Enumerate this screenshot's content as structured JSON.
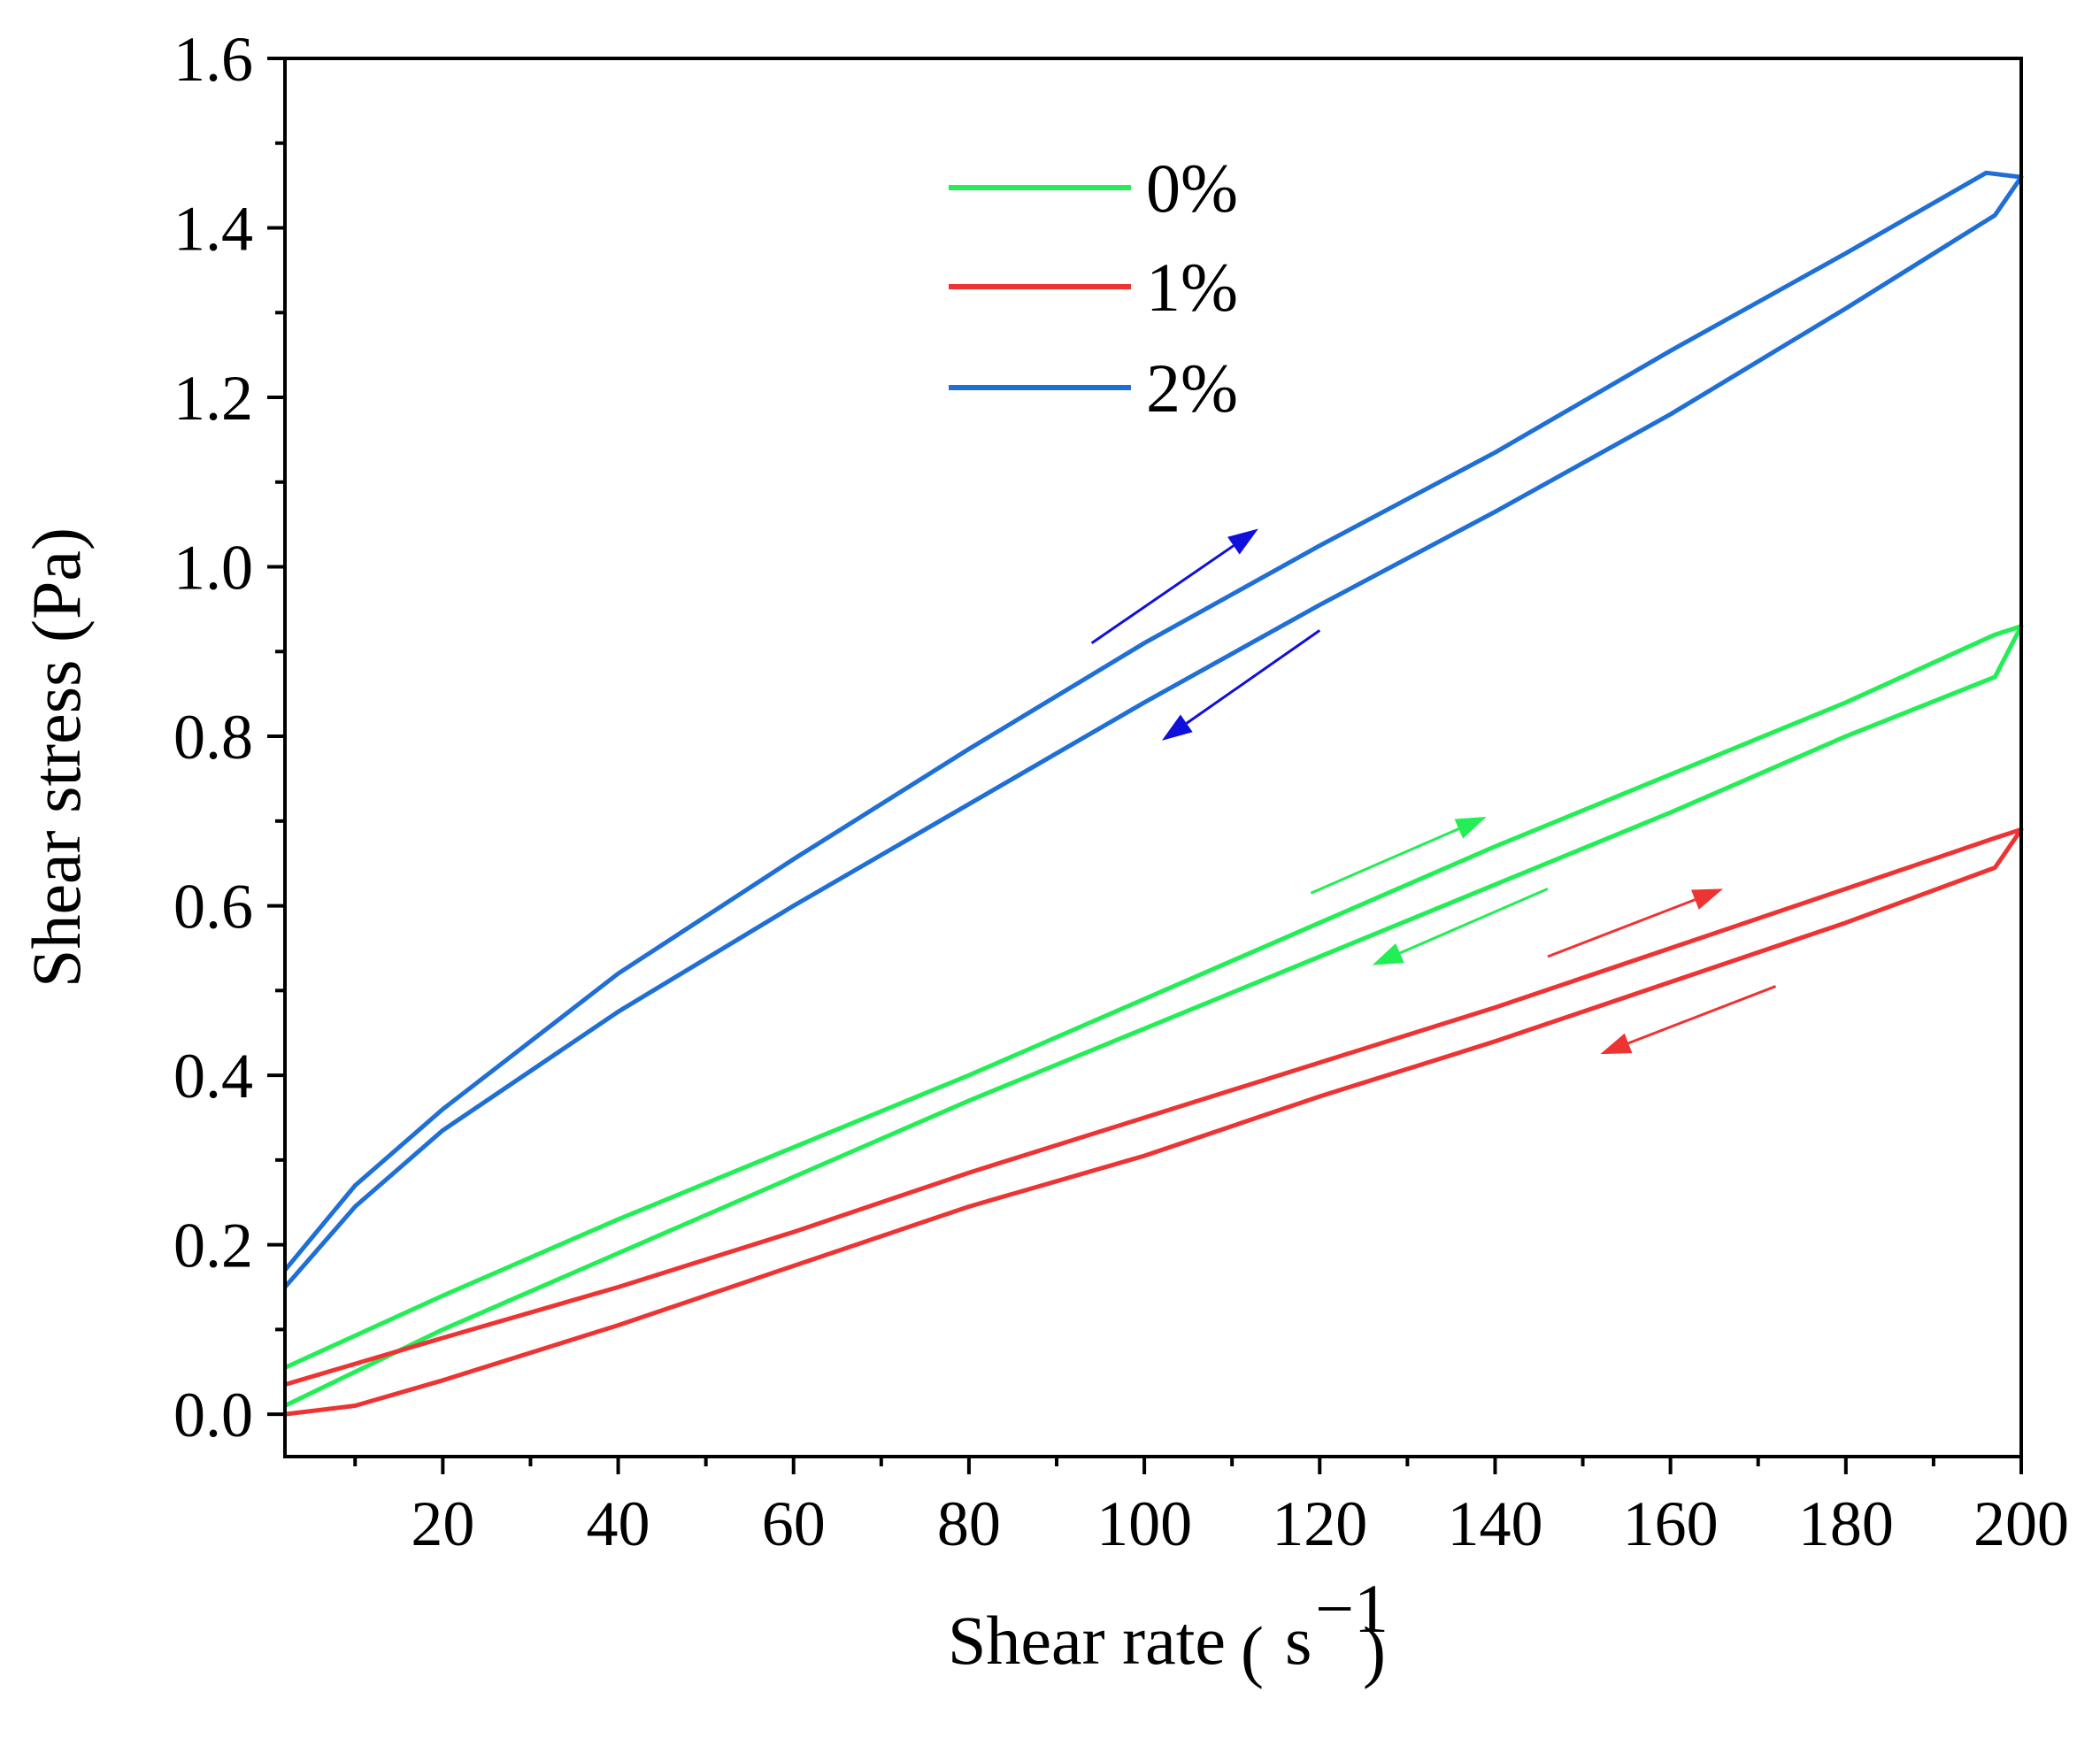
{
  "chart_data": {
    "type": "line",
    "title": "",
    "xlabel": "Shear rate",
    "xlabel_unit_base": "s",
    "xlabel_unit_exp": "−1",
    "ylabel": "Shear stress (Pa)",
    "xlim": [
      2,
      200
    ],
    "ylim": [
      -0.05,
      1.6
    ],
    "x_ticks": [
      20,
      40,
      60,
      80,
      100,
      120,
      140,
      160,
      180,
      200
    ],
    "y_ticks": [
      0.0,
      0.2,
      0.4,
      0.6,
      0.8,
      1.0,
      1.2,
      1.4,
      1.6
    ],
    "x_tick_labels": [
      "20",
      "40",
      "60",
      "80",
      "100",
      "120",
      "140",
      "160",
      "180",
      "200"
    ],
    "y_tick_labels": [
      "0.0",
      "0.2",
      "0.4",
      "0.6",
      "0.8",
      "1.0",
      "1.2",
      "1.4",
      "1.6"
    ],
    "grid": false,
    "legend_position": "top-center",
    "colors": {
      "0%": "#22ee55",
      "1%": "#ee3333",
      "2%": "#1f6fd6"
    },
    "series": [
      {
        "name": "0%",
        "color": "#22ee55",
        "up": {
          "x": [
            2,
            20,
            40,
            60,
            80,
            100,
            120,
            140,
            160,
            180,
            197,
            200
          ],
          "y": [
            0.055,
            0.14,
            0.23,
            0.315,
            0.4,
            0.49,
            0.58,
            0.67,
            0.755,
            0.84,
            0.92,
            0.93
          ]
        },
        "down": {
          "x": [
            200,
            197,
            180,
            160,
            140,
            120,
            100,
            80,
            60,
            40,
            20,
            2
          ],
          "y": [
            0.93,
            0.87,
            0.8,
            0.71,
            0.625,
            0.54,
            0.455,
            0.37,
            0.28,
            0.19,
            0.1,
            0.01
          ]
        }
      },
      {
        "name": "1%",
        "color": "#ee3333",
        "up": {
          "x": [
            2,
            20,
            40,
            60,
            80,
            100,
            120,
            140,
            160,
            180,
            197,
            200
          ],
          "y": [
            0.035,
            0.09,
            0.15,
            0.215,
            0.285,
            0.35,
            0.415,
            0.48,
            0.55,
            0.62,
            0.68,
            0.69
          ]
        },
        "down": {
          "x": [
            200,
            197,
            180,
            160,
            140,
            120,
            100,
            80,
            60,
            40,
            20,
            10,
            2
          ],
          "y": [
            0.69,
            0.645,
            0.58,
            0.51,
            0.44,
            0.375,
            0.305,
            0.245,
            0.175,
            0.105,
            0.04,
            0.01,
            0.0
          ]
        }
      },
      {
        "name": "2%",
        "color": "#1f6fd6",
        "up": {
          "x": [
            2,
            10,
            20,
            40,
            60,
            80,
            100,
            120,
            140,
            160,
            180,
            196,
            200
          ],
          "y": [
            0.17,
            0.27,
            0.36,
            0.52,
            0.655,
            0.785,
            0.91,
            1.025,
            1.135,
            1.255,
            1.37,
            1.465,
            1.46
          ]
        },
        "down": {
          "x": [
            200,
            197,
            180,
            160,
            140,
            120,
            100,
            80,
            60,
            40,
            20,
            10,
            2
          ],
          "y": [
            1.46,
            1.415,
            1.305,
            1.18,
            1.065,
            0.955,
            0.84,
            0.72,
            0.6,
            0.475,
            0.335,
            0.245,
            0.15
          ]
        }
      }
    ],
    "arrows": [
      {
        "color": "#1010dd",
        "from": [
          94,
          0.91
        ],
        "to": [
          113,
          1.045
        ]
      },
      {
        "color": "#1010dd",
        "from": [
          120,
          0.925
        ],
        "to": [
          102,
          0.795
        ]
      },
      {
        "color": "#22ee55",
        "from": [
          119,
          0.615
        ],
        "to": [
          139,
          0.705
        ]
      },
      {
        "color": "#22ee55",
        "from": [
          146,
          0.62
        ],
        "to": [
          126,
          0.53
        ]
      },
      {
        "color": "#ee3333",
        "from": [
          146,
          0.54
        ],
        "to": [
          166,
          0.62
        ]
      },
      {
        "color": "#ee3333",
        "from": [
          172,
          0.505
        ],
        "to": [
          152,
          0.425
        ]
      }
    ]
  }
}
